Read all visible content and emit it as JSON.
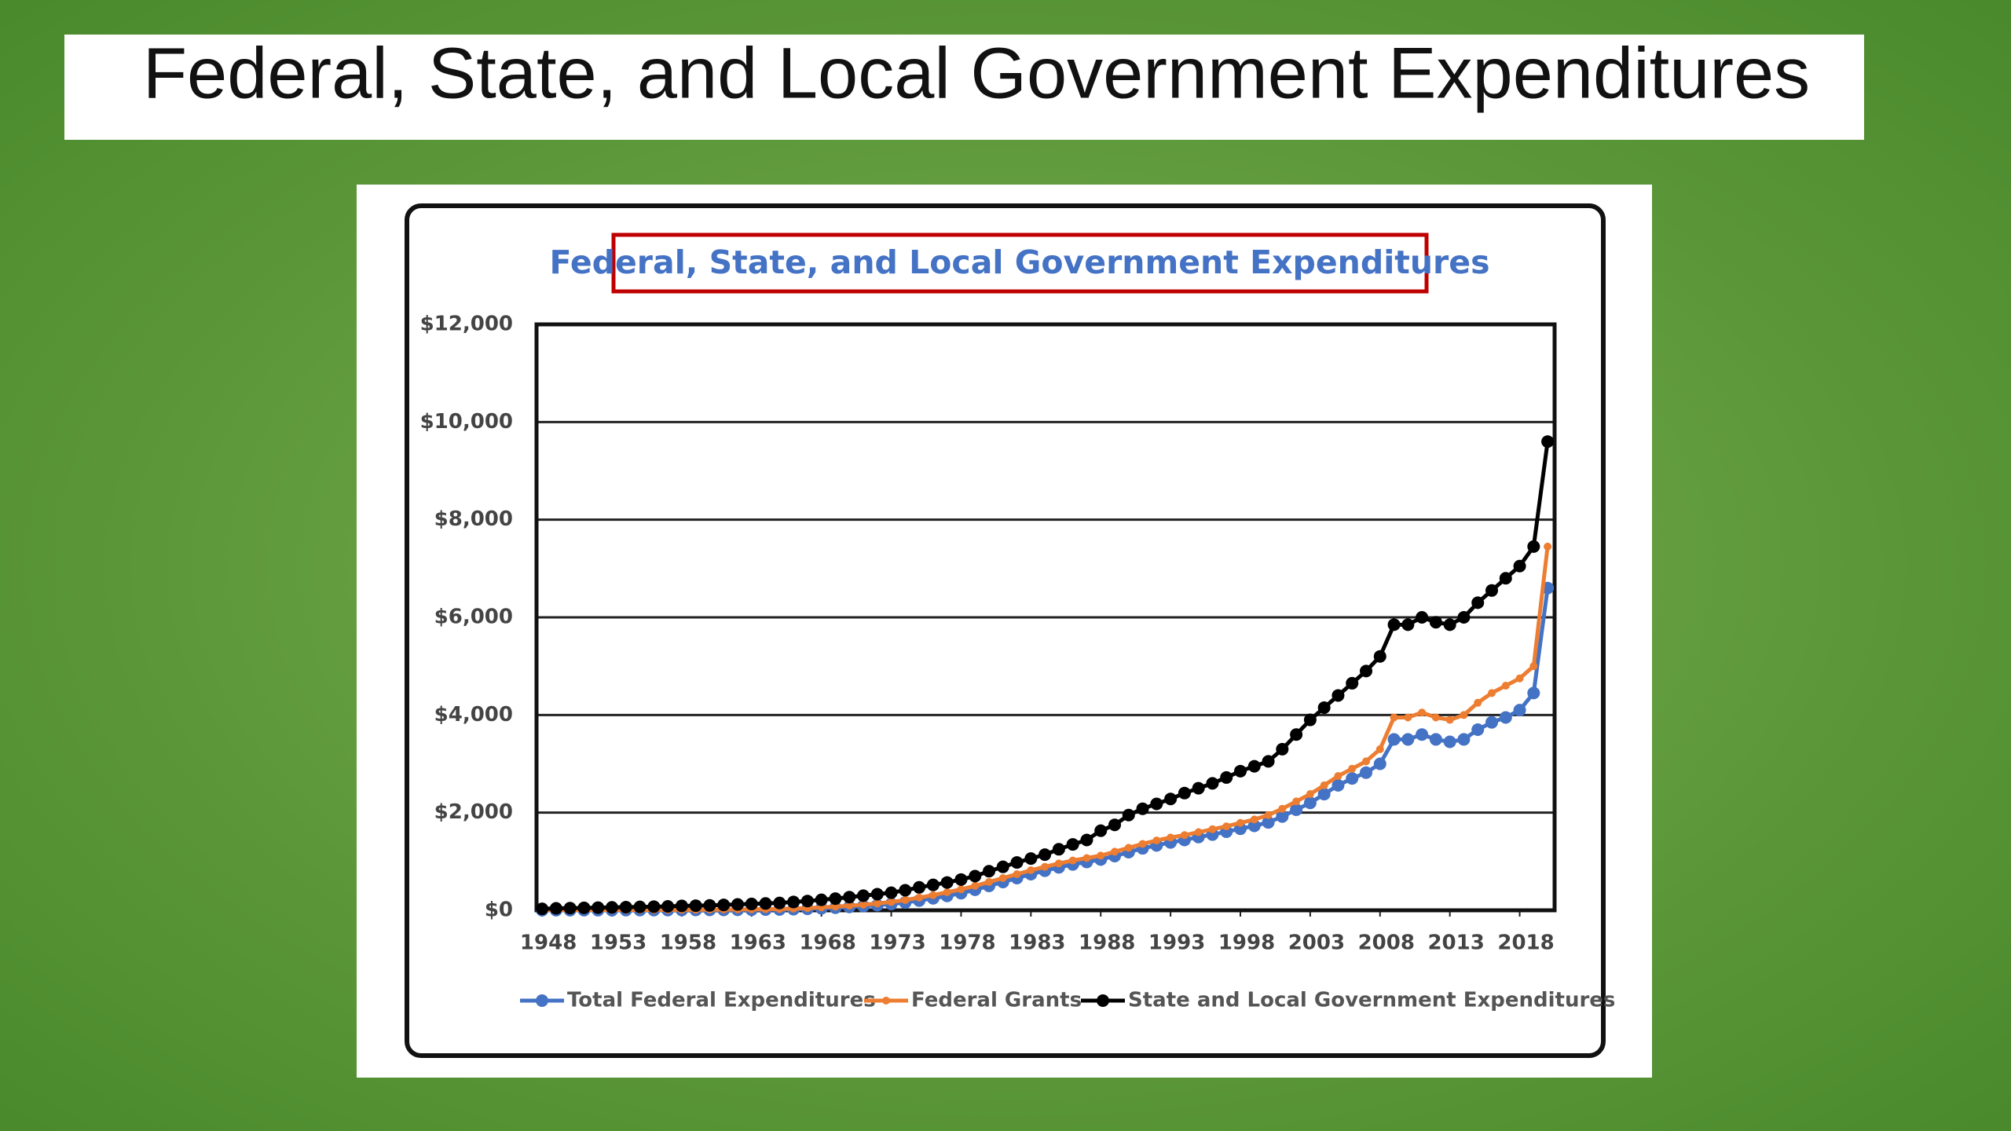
{
  "slide_title": "Federal, State, and Local Government Expenditures",
  "chart_data": {
    "type": "line",
    "title": "Federal, State, and Local Government Expenditures",
    "x": [
      1948,
      1949,
      1950,
      1951,
      1952,
      1953,
      1954,
      1955,
      1956,
      1957,
      1958,
      1959,
      1960,
      1961,
      1962,
      1963,
      1964,
      1965,
      1966,
      1967,
      1968,
      1969,
      1970,
      1971,
      1972,
      1973,
      1974,
      1975,
      1976,
      1977,
      1978,
      1979,
      1980,
      1981,
      1982,
      1983,
      1984,
      1985,
      1986,
      1987,
      1988,
      1989,
      1990,
      1991,
      1992,
      1993,
      1994,
      1995,
      1996,
      1997,
      1998,
      1999,
      2000,
      2001,
      2002,
      2003,
      2004,
      2005,
      2006,
      2007,
      2008,
      2009,
      2010,
      2011,
      2012,
      2013,
      2014,
      2015,
      2016,
      2017,
      2018,
      2019,
      2020
    ],
    "series": [
      {
        "name": "Total Federal Expenditures",
        "color": "#4472c4",
        "values": [
          2,
          2,
          2,
          3,
          3,
          3,
          4,
          4,
          5,
          5,
          6,
          7,
          8,
          9,
          10,
          12,
          14,
          17,
          22,
          30,
          40,
          52,
          68,
          85,
          105,
          130,
          160,
          200,
          245,
          295,
          350,
          420,
          500,
          580,
          660,
          740,
          810,
          880,
          940,
          990,
          1040,
          1110,
          1190,
          1270,
          1330,
          1390,
          1440,
          1500,
          1550,
          1610,
          1670,
          1730,
          1800,
          1920,
          2060,
          2200,
          2380,
          2560,
          2700,
          2820,
          3000,
          3500,
          3500,
          3600,
          3500,
          3450,
          3500,
          3700,
          3850,
          3950,
          4100,
          4450,
          6600
        ]
      },
      {
        "name": "Federal Grants",
        "color": "#ed7d31",
        "values": [
          5,
          5,
          5,
          6,
          6,
          7,
          7,
          8,
          9,
          10,
          11,
          12,
          14,
          16,
          18,
          20,
          23,
          27,
          35,
          45,
          60,
          75,
          95,
          115,
          140,
          170,
          210,
          260,
          310,
          370,
          430,
          500,
          580,
          660,
          740,
          820,
          890,
          960,
          1020,
          1070,
          1120,
          1200,
          1280,
          1360,
          1430,
          1490,
          1540,
          1600,
          1660,
          1720,
          1790,
          1860,
          1950,
          2080,
          2230,
          2380,
          2560,
          2750,
          2900,
          3050,
          3300,
          3950,
          3950,
          4050,
          3950,
          3900,
          4000,
          4250,
          4450,
          4600,
          4750,
          5000,
          7450
        ]
      },
      {
        "name": "State and Local Government Expenditures",
        "color": "#000000",
        "values": [
          30,
          40,
          45,
          50,
          55,
          60,
          65,
          70,
          75,
          80,
          90,
          95,
          100,
          110,
          120,
          130,
          140,
          150,
          170,
          190,
          215,
          240,
          270,
          300,
          330,
          360,
          410,
          470,
          520,
          570,
          630,
          700,
          800,
          890,
          980,
          1060,
          1140,
          1250,
          1350,
          1440,
          1630,
          1750,
          1950,
          2080,
          2180,
          2280,
          2400,
          2500,
          2600,
          2720,
          2850,
          2950,
          3050,
          3300,
          3600,
          3900,
          4150,
          4400,
          4650,
          4900,
          5200,
          5850,
          5850,
          6000,
          5900,
          5850,
          6000,
          6300,
          6550,
          6800,
          7050,
          7450,
          9600
        ]
      }
    ],
    "xlim": [
      1947.6,
      2020.5
    ],
    "xticks": [
      1948,
      1953,
      1958,
      1963,
      1968,
      1973,
      1978,
      1983,
      1988,
      1993,
      1998,
      2003,
      2008,
      2013,
      2018
    ],
    "ylim": [
      0,
      12000
    ],
    "yticks": [
      {
        "value": 0,
        "label": "$0"
      },
      {
        "value": 2000,
        "label": "$2,000"
      },
      {
        "value": 4000,
        "label": "$4,000"
      },
      {
        "value": 6000,
        "label": "$6,000"
      },
      {
        "value": 8000,
        "label": "$8,000"
      },
      {
        "value": 10000,
        "label": "$10,000"
      },
      {
        "value": 12000,
        "label": "$12,000"
      }
    ],
    "grid": true,
    "legend": "bottom"
  }
}
